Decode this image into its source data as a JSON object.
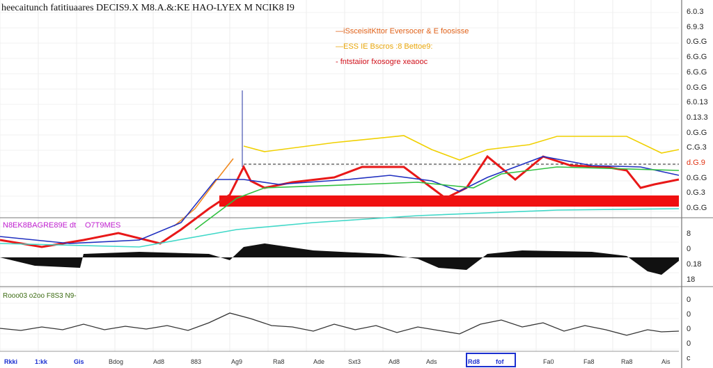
{
  "title": "heecaitunch fatitiuaares DECIS9.X M8.A.&:KE HAO-LYEX M NCIK8 I9",
  "legend": [
    {
      "label": "—iSsceisitKttor Eversocer & E foosisse",
      "color": "#e0621a"
    },
    {
      "label": "—ESS IE Bscros :8 Bettoe9:",
      "color": "#e8a60a"
    },
    {
      "label": "- fntstaiior fxosogre xeaooc",
      "color": "#d0101a"
    }
  ],
  "panel2_labels": [
    "N8EK8BAGRE89E dt",
    "O7T9MES"
  ],
  "panel3_label": "Rooo03 o2oo F8S3 N9-",
  "y_axis_main": [
    "6.0.3",
    "6.9.3",
    "0.G.G",
    "6.G.G",
    "6.G.G",
    "0.G.G",
    "6.0.13",
    "0.13.3",
    "0.G.G",
    "C.G.3",
    "d.G.9",
    "0.G.G",
    "0.G.3",
    "0.G.G"
  ],
  "y_axis_panel2": [
    "8",
    "0",
    "0.18",
    "18"
  ],
  "y_axis_panel3": [
    "0",
    "0",
    "0",
    "0",
    "c"
  ],
  "x_axis": [
    "Rkki",
    "1:kk",
    "Gis",
    "Bdog",
    "Ad8",
    "883",
    "Ag9",
    "Ra8",
    "Ade",
    "Sxt3",
    "Ad8",
    "Ads",
    "Rd8",
    "fof",
    "Fa0",
    "Fa8",
    "Ra8",
    "Ais"
  ],
  "chart_data": {
    "type": "line",
    "xlim": [
      0,
      195
    ],
    "main_ylim": [
      -90,
      313
    ],
    "series": [
      {
        "name": "price",
        "color": "#e81818",
        "points": [
          [
            0,
            -32
          ],
          [
            12,
            -42
          ],
          [
            24,
            -32
          ],
          [
            34,
            -22
          ],
          [
            46,
            -37
          ],
          [
            52,
            -17
          ],
          [
            60,
            13
          ],
          [
            66,
            33
          ],
          [
            70,
            73
          ],
          [
            72,
            53
          ],
          [
            76,
            43
          ],
          [
            84,
            51
          ],
          [
            96,
            58
          ],
          [
            104,
            73
          ],
          [
            116,
            73
          ],
          [
            124,
            43
          ],
          [
            128,
            28
          ],
          [
            134,
            43
          ],
          [
            140,
            88
          ],
          [
            148,
            55
          ],
          [
            156,
            88
          ],
          [
            164,
            75
          ],
          [
            174,
            73
          ],
          [
            180,
            68
          ],
          [
            184,
            43
          ],
          [
            188,
            48
          ],
          [
            195,
            55
          ]
        ]
      },
      {
        "name": "upper",
        "color": "#f0d000",
        "points": [
          [
            70,
            103
          ],
          [
            76,
            95
          ],
          [
            96,
            108
          ],
          [
            116,
            118
          ],
          [
            124,
            98
          ],
          [
            132,
            83
          ],
          [
            140,
            98
          ],
          [
            152,
            105
          ],
          [
            160,
            117
          ],
          [
            180,
            117
          ],
          [
            190,
            93
          ],
          [
            195,
            98
          ]
        ]
      },
      {
        "name": "fast",
        "color": "#f08a20",
        "points": [
          [
            50,
            -12
          ],
          [
            56,
            13
          ],
          [
            62,
            53
          ],
          [
            67,
            85
          ]
        ]
      },
      {
        "name": "ma-blue",
        "color": "#2030c0",
        "points": [
          [
            0,
            -27
          ],
          [
            20,
            -37
          ],
          [
            40,
            -32
          ],
          [
            52,
            -7
          ],
          [
            62,
            55
          ],
          [
            70,
            55
          ],
          [
            80,
            48
          ],
          [
            100,
            55
          ],
          [
            112,
            61
          ],
          [
            124,
            53
          ],
          [
            132,
            38
          ],
          [
            140,
            58
          ],
          [
            156,
            88
          ],
          [
            170,
            75
          ],
          [
            184,
            73
          ],
          [
            195,
            61
          ]
        ]
      },
      {
        "name": "ma-green",
        "color": "#30c040",
        "points": [
          [
            56,
            -17
          ],
          [
            68,
            28
          ],
          [
            76,
            43
          ],
          [
            104,
            48
          ],
          [
            120,
            51
          ],
          [
            136,
            43
          ],
          [
            144,
            63
          ],
          [
            160,
            73
          ],
          [
            195,
            68
          ]
        ]
      },
      {
        "name": "ma-cyan",
        "color": "#40d8c8",
        "points": [
          [
            0,
            -37
          ],
          [
            40,
            -42
          ],
          [
            68,
            -17
          ],
          [
            90,
            -7
          ],
          [
            120,
            3
          ],
          [
            160,
            11
          ],
          [
            195,
            13
          ]
        ]
      }
    ],
    "resistance": 77,
    "band": [
      16,
      32
    ],
    "histogram": [
      [
        0,
        0
      ],
      [
        10,
        -12
      ],
      [
        23,
        -15
      ],
      [
        24,
        5
      ],
      [
        40,
        8
      ],
      [
        60,
        5
      ],
      [
        66,
        -4
      ],
      [
        70,
        15
      ],
      [
        76,
        20
      ],
      [
        90,
        10
      ],
      [
        110,
        5
      ],
      [
        120,
        -2
      ],
      [
        126,
        -15
      ],
      [
        134,
        -18
      ],
      [
        140,
        5
      ],
      [
        150,
        10
      ],
      [
        170,
        8
      ],
      [
        180,
        2
      ],
      [
        186,
        -20
      ],
      [
        190,
        -25
      ],
      [
        195,
        -5
      ]
    ],
    "oscillator": [
      [
        0,
        0
      ],
      [
        6,
        -3
      ],
      [
        12,
        2
      ],
      [
        18,
        -2
      ],
      [
        24,
        6
      ],
      [
        30,
        -2
      ],
      [
        36,
        3
      ],
      [
        42,
        -1
      ],
      [
        48,
        4
      ],
      [
        54,
        -3
      ],
      [
        60,
        8
      ],
      [
        66,
        22
      ],
      [
        72,
        14
      ],
      [
        78,
        4
      ],
      [
        84,
        2
      ],
      [
        90,
        -4
      ],
      [
        96,
        6
      ],
      [
        102,
        -2
      ],
      [
        108,
        4
      ],
      [
        114,
        -6
      ],
      [
        120,
        2
      ],
      [
        126,
        -3
      ],
      [
        132,
        -8
      ],
      [
        138,
        6
      ],
      [
        144,
        12
      ],
      [
        150,
        2
      ],
      [
        156,
        8
      ],
      [
        162,
        -4
      ],
      [
        168,
        4
      ],
      [
        174,
        -2
      ],
      [
        180,
        -10
      ],
      [
        186,
        -2
      ],
      [
        190,
        -5
      ],
      [
        195,
        -4
      ]
    ]
  }
}
